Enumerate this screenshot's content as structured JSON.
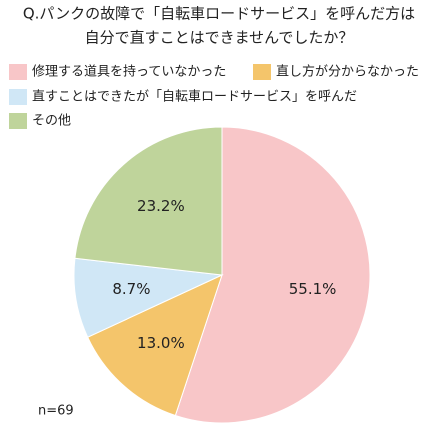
{
  "chart_data": {
    "type": "pie",
    "title": [
      "Q.パンクの故障で「自転車ロードサービス」を呼んだ方は",
      "自分で直すことはできませんでしたか？"
    ],
    "categories": [
      "修理する道具を持っていなかった",
      "直し方が分からなかった",
      "直すことはできたが「自転車ロードサービス」を呼んだ",
      "その他"
    ],
    "values": [
      55.1,
      13.0,
      8.7,
      23.2
    ],
    "value_labels": [
      "55.1%",
      "13.0%",
      "8.7%",
      "23.2%"
    ],
    "colors": [
      "#f8c6c8",
      "#f4c56b",
      "#d0e7f6",
      "#bfd49b"
    ],
    "note": "n=69"
  }
}
